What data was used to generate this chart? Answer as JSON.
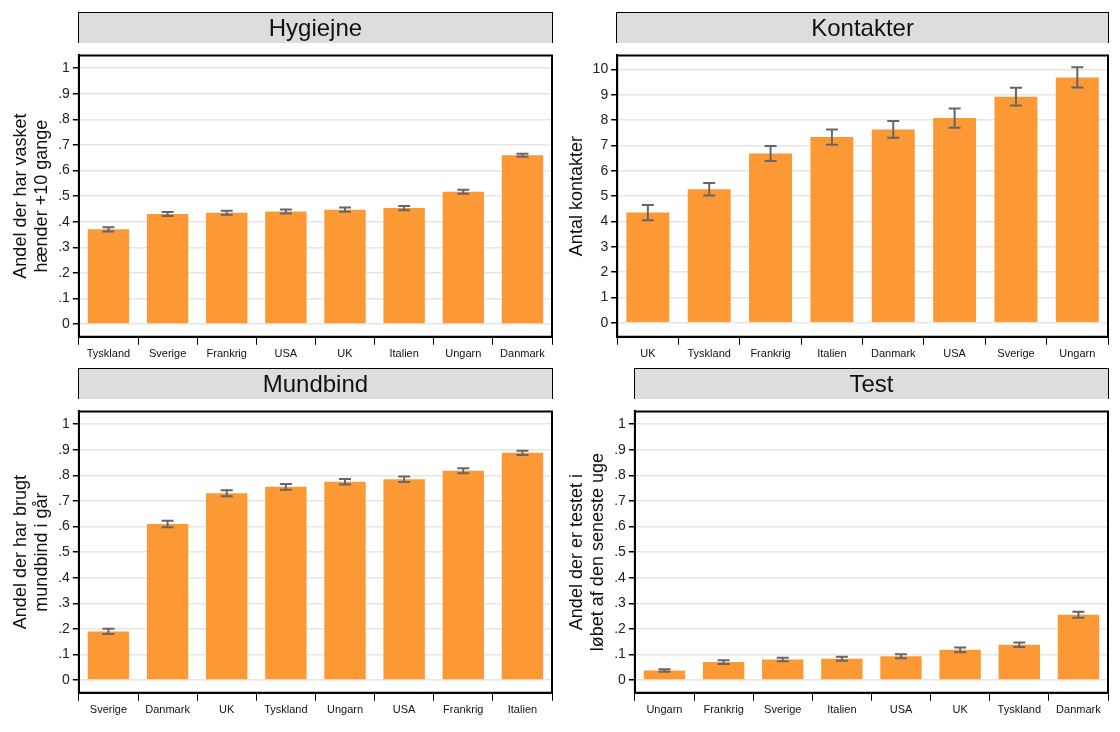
{
  "chart_data": [
    {
      "type": "bar",
      "title": "Hygiejne",
      "ylabel": "Andel der har vasket hænder +10 gange",
      "categories": [
        "Tyskland",
        "Sverige",
        "Frankrig",
        "USA",
        "UK",
        "Italien",
        "Ungarn",
        "Danmark"
      ],
      "values": [
        0.37,
        0.43,
        0.435,
        0.44,
        0.447,
        0.453,
        0.517,
        0.66
      ],
      "errors": [
        0.008,
        0.008,
        0.008,
        0.008,
        0.008,
        0.008,
        0.008,
        0.006
      ],
      "color": "#fd9935",
      "ylim": [
        -0.05,
        1.05
      ],
      "yticks": [
        0,
        {
          "value": 0.1,
          "label": ".1"
        },
        {
          "value": 0.2,
          "label": ".2"
        },
        {
          "value": 0.3,
          "label": ".3"
        },
        {
          "value": 0.4,
          "label": ".4"
        },
        {
          "value": 0.5,
          "label": ".5"
        },
        {
          "value": 0.6,
          "label": ".6"
        },
        {
          "value": 0.7,
          "label": ".7"
        },
        {
          "value": 0.8,
          "label": ".8"
        },
        {
          "value": 0.9,
          "label": ".9"
        },
        1
      ],
      "grid": "y"
    },
    {
      "type": "bar",
      "title": "Kontakter",
      "ylabel": "Antal kontakter",
      "categories": [
        "UK",
        "Tyskland",
        "Frankrig",
        "Italien",
        "Danmark",
        "USA",
        "Sverige",
        "Ungarn"
      ],
      "values": [
        4.35,
        5.27,
        6.68,
        7.33,
        7.63,
        8.08,
        8.92,
        9.68
      ],
      "errors": [
        0.3,
        0.25,
        0.3,
        0.3,
        0.33,
        0.38,
        0.35,
        0.4
      ],
      "color": "#fd9935",
      "ylim": [
        -0.55,
        10.55
      ],
      "yticks": [
        0,
        1,
        2,
        3,
        4,
        5,
        6,
        7,
        8,
        9,
        10
      ],
      "grid": "y"
    },
    {
      "type": "bar",
      "title": "Mundbind",
      "ylabel": "Andel der har brugt mundbind i går",
      "categories": [
        "Sverige",
        "Danmark",
        "UK",
        "Tyskland",
        "Ungarn",
        "USA",
        "Frankrig",
        "Italien"
      ],
      "values": [
        0.19,
        0.61,
        0.73,
        0.755,
        0.775,
        0.785,
        0.818,
        0.888
      ],
      "errors": [
        0.01,
        0.013,
        0.012,
        0.011,
        0.011,
        0.011,
        0.01,
        0.008
      ],
      "color": "#fd9935",
      "ylim": [
        -0.05,
        1.05
      ],
      "yticks": [
        0,
        {
          "value": 0.1,
          "label": ".1"
        },
        {
          "value": 0.2,
          "label": ".2"
        },
        {
          "value": 0.3,
          "label": ".3"
        },
        {
          "value": 0.4,
          "label": ".4"
        },
        {
          "value": 0.5,
          "label": ".5"
        },
        {
          "value": 0.6,
          "label": ".6"
        },
        {
          "value": 0.7,
          "label": ".7"
        },
        {
          "value": 0.8,
          "label": ".8"
        },
        {
          "value": 0.9,
          "label": ".9"
        },
        1
      ],
      "grid": "y"
    },
    {
      "type": "bar",
      "title": "Test",
      "ylabel": "Andel der er testet i løbet af den seneste uge",
      "categories": [
        "Ungarn",
        "Frankrig",
        "Sverige",
        "Italien",
        "USA",
        "UK",
        "Tyskland",
        "Danmark"
      ],
      "values": [
        0.037,
        0.07,
        0.08,
        0.083,
        0.093,
        0.118,
        0.138,
        0.255
      ],
      "errors": [
        0.005,
        0.007,
        0.007,
        0.008,
        0.008,
        0.009,
        0.009,
        0.012
      ],
      "color": "#fd9935",
      "ylim": [
        -0.05,
        1.05
      ],
      "yticks": [
        0,
        {
          "value": 0.1,
          "label": ".1"
        },
        {
          "value": 0.2,
          "label": ".2"
        },
        {
          "value": 0.3,
          "label": ".3"
        },
        {
          "value": 0.4,
          "label": ".4"
        },
        {
          "value": 0.5,
          "label": ".5"
        },
        {
          "value": 0.6,
          "label": ".6"
        },
        {
          "value": 0.7,
          "label": ".7"
        },
        {
          "value": 0.8,
          "label": ".8"
        },
        {
          "value": 0.9,
          "label": ".9"
        },
        1
      ],
      "grid": "y"
    }
  ]
}
